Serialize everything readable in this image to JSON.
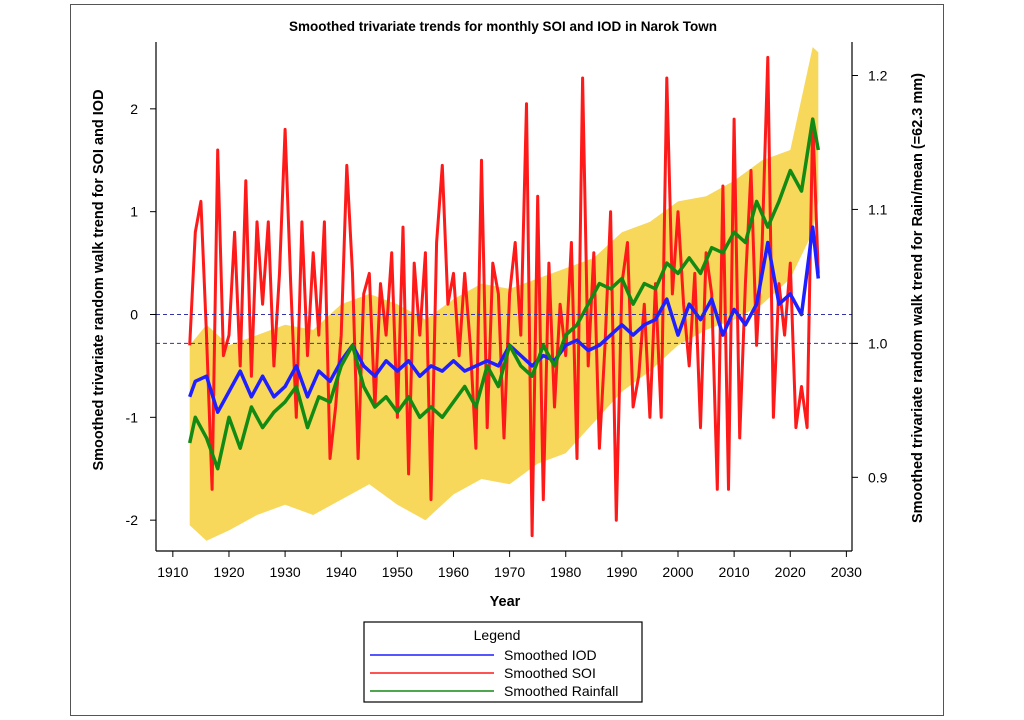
{
  "chart_data": {
    "type": "line",
    "title": "Smoothed trivariate trends for monthly SOI and IOD  in Narok Town",
    "xlabel": "Year",
    "ylabel_left": "Smoothed trivariate random walk trend for SOI and IOD",
    "ylabel_right": "Smoothed trivariate random walk trend for Rain/mean (=62.3 mm)",
    "xlim": [
      1907,
      2031
    ],
    "ylim_left": [
      -2.3,
      2.65
    ],
    "ylim_right": [
      0.845,
      1.225
    ],
    "x_ticks": [
      "1910",
      "1920",
      "1930",
      "1940",
      "1950",
      "1960",
      "1970",
      "1980",
      "1990",
      "2000",
      "2010",
      "2020",
      "2030"
    ],
    "y_ticks_left": [
      "-2",
      "-1",
      "0",
      "1",
      "2"
    ],
    "y_ticks_right": [
      "0.9",
      "1.0",
      "1.1",
      "1.2"
    ],
    "reference_lines": [
      {
        "axis": "left",
        "value": 0,
        "style": "dashed",
        "color": "#3333aa"
      },
      {
        "axis": "right",
        "value": 1.0,
        "style": "dashed",
        "color": "#3333aa"
      }
    ],
    "band": {
      "name": "Rainfall confidence band",
      "color": "#f7d85a",
      "axis": "left",
      "x": [
        1913,
        1916,
        1920,
        1925,
        1930,
        1935,
        1940,
        1945,
        1950,
        1955,
        1960,
        1965,
        1970,
        1975,
        1980,
        1985,
        1990,
        1995,
        2000,
        2005,
        2010,
        2015,
        2020,
        2024,
        2025
      ],
      "upper": [
        -0.3,
        -0.1,
        -0.3,
        -0.2,
        -0.1,
        -0.15,
        0.1,
        0.2,
        0.1,
        -0.05,
        0.15,
        0.3,
        0.25,
        0.35,
        0.45,
        0.55,
        0.8,
        0.9,
        1.1,
        1.15,
        1.3,
        1.5,
        1.6,
        2.6,
        2.55
      ],
      "lower": [
        -2.05,
        -2.2,
        -2.1,
        -1.95,
        -1.85,
        -1.95,
        -1.8,
        -1.65,
        -1.85,
        -2.0,
        -1.75,
        -1.6,
        -1.65,
        -1.45,
        -1.35,
        -1.05,
        -0.75,
        -0.55,
        -0.3,
        -0.15,
        -0.05,
        0.1,
        0.35,
        0.8,
        1.1
      ]
    },
    "series": [
      {
        "name": "Smoothed IOD",
        "color": "#1f1fff",
        "axis": "left",
        "x": [
          1913,
          1914,
          1916,
          1918,
          1920,
          1922,
          1924,
          1926,
          1928,
          1930,
          1932,
          1934,
          1936,
          1938,
          1940,
          1942,
          1944,
          1946,
          1948,
          1950,
          1952,
          1954,
          1956,
          1958,
          1960,
          1962,
          1964,
          1966,
          1968,
          1970,
          1972,
          1974,
          1976,
          1978,
          1980,
          1982,
          1984,
          1986,
          1988,
          1990,
          1992,
          1994,
          1996,
          1998,
          2000,
          2002,
          2004,
          2006,
          2008,
          2010,
          2012,
          2014,
          2016,
          2018,
          2020,
          2022,
          2024,
          2025
        ],
        "values": [
          -0.8,
          -0.65,
          -0.6,
          -0.95,
          -0.75,
          -0.55,
          -0.8,
          -0.6,
          -0.8,
          -0.7,
          -0.5,
          -0.8,
          -0.55,
          -0.65,
          -0.45,
          -0.3,
          -0.5,
          -0.6,
          -0.45,
          -0.55,
          -0.45,
          -0.6,
          -0.5,
          -0.55,
          -0.45,
          -0.55,
          -0.5,
          -0.45,
          -0.5,
          -0.3,
          -0.4,
          -0.5,
          -0.4,
          -0.45,
          -0.3,
          -0.25,
          -0.35,
          -0.3,
          -0.2,
          -0.1,
          -0.2,
          -0.1,
          -0.05,
          0.15,
          -0.2,
          0.1,
          -0.05,
          0.15,
          -0.2,
          0.05,
          -0.1,
          0.1,
          0.7,
          0.1,
          0.2,
          0.0,
          0.85,
          0.35
        ]
      },
      {
        "name": "Smoothed SOI",
        "color": "#ff1a1a",
        "axis": "left",
        "x": [
          1913,
          1914,
          1915,
          1916,
          1917,
          1918,
          1919,
          1920,
          1921,
          1922,
          1923,
          1924,
          1925,
          1926,
          1927,
          1928,
          1929,
          1930,
          1931,
          1932,
          1933,
          1934,
          1935,
          1936,
          1937,
          1938,
          1939,
          1940,
          1941,
          1942,
          1943,
          1944,
          1945,
          1946,
          1947,
          1948,
          1949,
          1950,
          1951,
          1952,
          1953,
          1954,
          1955,
          1956,
          1957,
          1958,
          1959,
          1960,
          1961,
          1962,
          1963,
          1964,
          1965,
          1966,
          1967,
          1968,
          1969,
          1970,
          1971,
          1972,
          1973,
          1974,
          1975,
          1976,
          1977,
          1978,
          1979,
          1980,
          1981,
          1982,
          1983,
          1984,
          1985,
          1986,
          1987,
          1988,
          1989,
          1990,
          1991,
          1992,
          1993,
          1994,
          1995,
          1996,
          1997,
          1998,
          1999,
          2000,
          2001,
          2002,
          2003,
          2004,
          2005,
          2006,
          2007,
          2008,
          2009,
          2010,
          2011,
          2012,
          2013,
          2014,
          2015,
          2016,
          2017,
          2018,
          2019,
          2020,
          2021,
          2022,
          2023,
          2024,
          2025
        ],
        "values": [
          -0.3,
          0.8,
          1.1,
          -0.2,
          -1.7,
          1.6,
          -0.4,
          -0.2,
          0.8,
          -0.5,
          1.3,
          -0.6,
          0.9,
          0.1,
          0.9,
          -0.5,
          0.4,
          1.8,
          0.3,
          -1.0,
          0.9,
          -0.4,
          0.6,
          -0.2,
          0.9,
          -1.4,
          -0.9,
          -0.2,
          1.45,
          0.4,
          -1.4,
          0.2,
          0.4,
          -0.9,
          0.3,
          -0.2,
          0.6,
          -1.0,
          0.85,
          -1.55,
          0.5,
          -0.2,
          0.6,
          -1.8,
          0.7,
          1.45,
          0.1,
          0.4,
          -0.4,
          0.4,
          -0.3,
          -1.3,
          1.5,
          -1.1,
          0.5,
          0.2,
          -1.2,
          0.2,
          0.7,
          -0.2,
          2.05,
          -2.15,
          1.15,
          -1.8,
          0.5,
          -0.9,
          0.1,
          -0.4,
          0.7,
          -1.4,
          2.3,
          -0.5,
          0.6,
          -1.3,
          -0.3,
          1.0,
          -2.0,
          0.3,
          0.7,
          -0.9,
          -0.6,
          0.1,
          -1.0,
          0.3,
          -1.0,
          2.3,
          0.2,
          1.0,
          0.1,
          -0.5,
          0.4,
          -1.1,
          0.6,
          0.2,
          -1.7,
          1.25,
          -1.7,
          1.9,
          -1.2,
          0.3,
          1.4,
          -0.3,
          0.7,
          2.5,
          -1.0,
          0.3,
          -0.2,
          0.5,
          -1.1,
          -0.7,
          -1.1,
          1.9,
          0.4
        ]
      },
      {
        "name": "Smoothed Rainfall",
        "color": "#138a13",
        "axis": "left",
        "x": [
          1913,
          1914,
          1916,
          1918,
          1920,
          1922,
          1924,
          1926,
          1928,
          1930,
          1932,
          1934,
          1936,
          1938,
          1940,
          1942,
          1944,
          1946,
          1948,
          1950,
          1952,
          1954,
          1956,
          1958,
          1960,
          1962,
          1964,
          1966,
          1968,
          1970,
          1972,
          1974,
          1976,
          1978,
          1980,
          1982,
          1984,
          1986,
          1988,
          1990,
          1992,
          1994,
          1996,
          1998,
          2000,
          2002,
          2004,
          2006,
          2008,
          2010,
          2012,
          2014,
          2016,
          2018,
          2020,
          2022,
          2024,
          2025
        ],
        "values": [
          -1.25,
          -1.0,
          -1.2,
          -1.5,
          -1.0,
          -1.3,
          -0.9,
          -1.1,
          -0.95,
          -0.85,
          -0.7,
          -1.1,
          -0.8,
          -0.85,
          -0.5,
          -0.3,
          -0.7,
          -0.9,
          -0.8,
          -0.95,
          -0.8,
          -1.0,
          -0.9,
          -1.0,
          -0.85,
          -0.7,
          -0.9,
          -0.5,
          -0.7,
          -0.3,
          -0.5,
          -0.6,
          -0.3,
          -0.5,
          -0.2,
          -0.1,
          0.1,
          0.3,
          0.25,
          0.35,
          0.1,
          0.3,
          0.25,
          0.5,
          0.4,
          0.55,
          0.4,
          0.65,
          0.6,
          0.8,
          0.7,
          1.1,
          0.85,
          1.1,
          1.4,
          1.2,
          1.9,
          1.6
        ]
      }
    ],
    "legend": {
      "title": "Legend",
      "position": "bottom-center",
      "entries": [
        "Smoothed IOD",
        "Smoothed SOI",
        "Smoothed Rainfall"
      ]
    },
    "grid": false
  }
}
